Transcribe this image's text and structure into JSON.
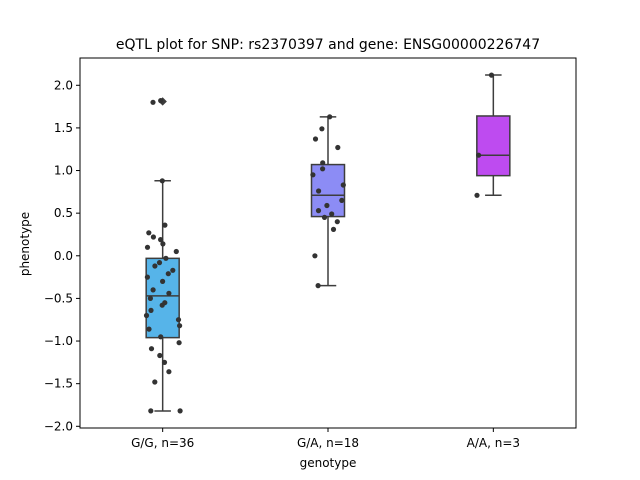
{
  "chart_data": {
    "type": "box",
    "title": "eQTL plot for SNP: rs2370397 and gene: ENSG00000226747",
    "xlabel": "genotype",
    "ylabel": "phenotype",
    "ylim": [
      -2.02,
      2.32
    ],
    "yticks": [
      -2.0,
      -1.5,
      -1.0,
      -0.5,
      0.0,
      0.5,
      1.0,
      1.5,
      2.0
    ],
    "ytick_labels": [
      "−2.0",
      "−1.5",
      "−1.0",
      "−0.5",
      "0.0",
      "0.5",
      "1.0",
      "1.5",
      "2.0"
    ],
    "grid": false,
    "categories": [
      "G/G, n=36",
      "G/A, n=18",
      "A/A, n=3"
    ],
    "boxes": [
      {
        "category": "G/G, n=36",
        "color": "#56b4e9",
        "q1": -0.96,
        "median": -0.47,
        "q3": -0.03,
        "whisker_low": -1.82,
        "whisker_high": 0.88,
        "outliers": [
          1.81
        ],
        "points": [
          0.88,
          0.36,
          0.27,
          0.22,
          0.19,
          0.14,
          0.1,
          0.05,
          -0.03,
          -0.08,
          -0.12,
          -0.17,
          -0.21,
          -0.25,
          -0.3,
          -0.4,
          -0.44,
          -0.5,
          -0.55,
          -0.58,
          -0.64,
          -0.7,
          -0.75,
          -0.82,
          -0.86,
          -0.95,
          -1.02,
          -1.09,
          -1.17,
          -1.25,
          -1.36,
          -1.48,
          -1.82,
          -1.82,
          1.82,
          1.8
        ]
      },
      {
        "category": "G/A, n=18",
        "color": "#8c8cf5",
        "q1": 0.46,
        "median": 0.71,
        "q3": 1.07,
        "whisker_low": -0.35,
        "whisker_high": 1.63,
        "outliers": [],
        "points": [
          1.63,
          1.49,
          1.37,
          1.27,
          1.09,
          1.02,
          0.95,
          0.83,
          0.76,
          0.65,
          0.59,
          0.53,
          0.49,
          0.45,
          0.4,
          0.31,
          0.0,
          -0.35
        ]
      },
      {
        "category": "A/A, n=3",
        "color": "#be4bf0",
        "q1": 0.94,
        "median": 1.18,
        "q3": 1.64,
        "whisker_low": 0.71,
        "whisker_high": 2.12,
        "outliers": [],
        "points": [
          2.12,
          1.18,
          0.71
        ]
      }
    ]
  }
}
